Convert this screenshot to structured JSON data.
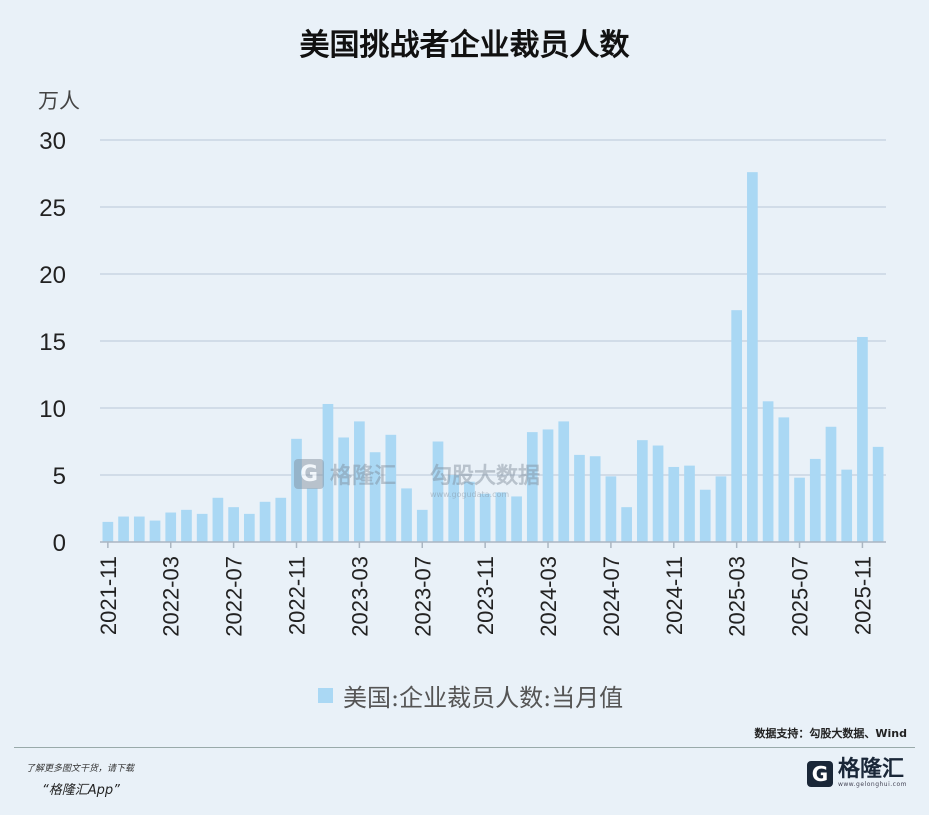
{
  "chart_data": {
    "type": "bar",
    "title": "美国挑战者企业裁员人数",
    "unit_label": "万人",
    "ylim": [
      0,
      30
    ],
    "yticks": [
      0,
      5,
      10,
      15,
      20,
      25,
      30
    ],
    "grid": true,
    "legend_position": "bottom",
    "series": [
      {
        "name": "美国:企业裁员人数:当月值",
        "color": "#aad8f4",
        "values": [
          1.5,
          1.9,
          1.9,
          1.6,
          2.2,
          2.4,
          2.1,
          3.3,
          2.6,
          2.1,
          3.0,
          3.3,
          7.7,
          4.0,
          10.3,
          7.8,
          9.0,
          6.7,
          8.0,
          4.0,
          2.4,
          7.5,
          5.0,
          4.5,
          3.6,
          3.7,
          3.4,
          8.2,
          8.4,
          9.0,
          6.5,
          6.4,
          4.9,
          2.6,
          7.6,
          7.2,
          5.6,
          5.7,
          3.9,
          4.9,
          17.3,
          27.6,
          10.5,
          9.3,
          4.8,
          6.2,
          8.6,
          5.4,
          15.3,
          7.1
        ]
      }
    ],
    "categories": [
      "2021-11",
      "2021-12",
      "2022-01",
      "2022-02",
      "2022-03",
      "2022-04",
      "2022-05",
      "2022-06",
      "2022-07",
      "2022-08",
      "2022-09",
      "2022-10",
      "2022-11",
      "2022-12",
      "2023-01",
      "2023-02",
      "2023-03",
      "2023-04",
      "2023-05",
      "2023-06",
      "2023-07",
      "2023-08",
      "2023-09",
      "2023-10",
      "2023-11",
      "2023-12",
      "2024-01",
      "2024-02",
      "2024-03",
      "2024-04",
      "2024-05",
      "2024-06",
      "2024-07",
      "2024-08",
      "2024-09",
      "2024-10",
      "2024-11",
      "2024-12",
      "2025-01",
      "2025-02",
      "2025-03",
      "2025-04",
      "2025-05",
      "2025-06",
      "2025-07",
      "2025-08",
      "2025-09",
      "2025-10",
      "2025-11",
      "2025-12"
    ],
    "xtick_labels": [
      "2021-11",
      "2022-03",
      "2022-07",
      "2022-11",
      "2023-03",
      "2023-07",
      "2023-11",
      "2024-03",
      "2024-07",
      "2024-11",
      "2025-03",
      "2025-07",
      "2025-11"
    ]
  },
  "source": "数据支持：勾股大数据、Wind",
  "footer": {
    "note": "了解更多图文干货，请下载",
    "app": "“格隆汇App”"
  },
  "logo": {
    "mark": "G",
    "text": "格隆汇",
    "sub": "www.gelonghui.com"
  },
  "watermark": {
    "left_mark": "G",
    "left_text": "格隆汇",
    "right_text": "勾股大数据",
    "right_sub": "www.gogudata.com"
  }
}
